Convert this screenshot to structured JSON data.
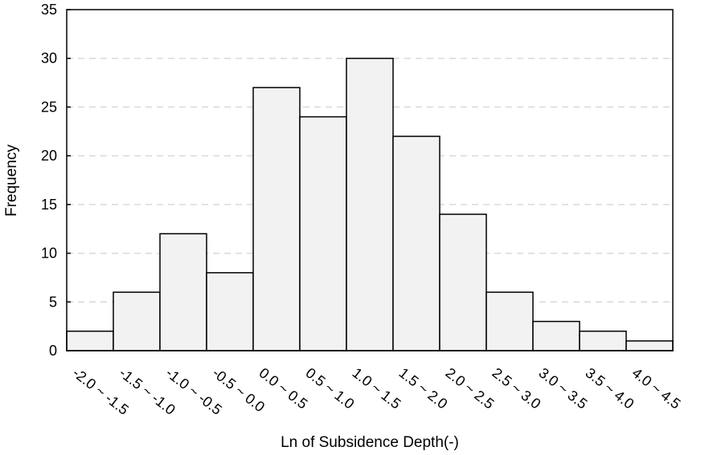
{
  "chart_data": {
    "type": "bar",
    "title": "",
    "xlabel": "Ln of Subsidence Depth(-)",
    "ylabel": "Frequency",
    "categories": [
      "-2.0 ~ -1.5",
      "-1.5 ~ -1.0",
      "-1.0 ~ -0.5",
      "-0.5 ~ 0.0",
      "0.0 ~ 0.5",
      "0.5 ~ 1.0",
      "1.0 ~ 1.5",
      "1.5 ~ 2.0",
      "2.0 ~ 2.5",
      "2.5 ~ 3.0",
      "3.0 ~ 3.5",
      "3.5 ~ 4.0",
      "4.0 ~ 4.5"
    ],
    "values": [
      2,
      6,
      12,
      8,
      27,
      24,
      30,
      22,
      14,
      6,
      3,
      2,
      1
    ],
    "ylim": [
      0,
      35
    ],
    "yticks": [
      0,
      5,
      10,
      15,
      20,
      25,
      30,
      35
    ],
    "grid": "horizontal dashed",
    "legend": "none",
    "colors": {
      "bar_fill": "#f2f2f2",
      "bar_stroke": "#000000",
      "grid": "#d9d9d9"
    }
  }
}
